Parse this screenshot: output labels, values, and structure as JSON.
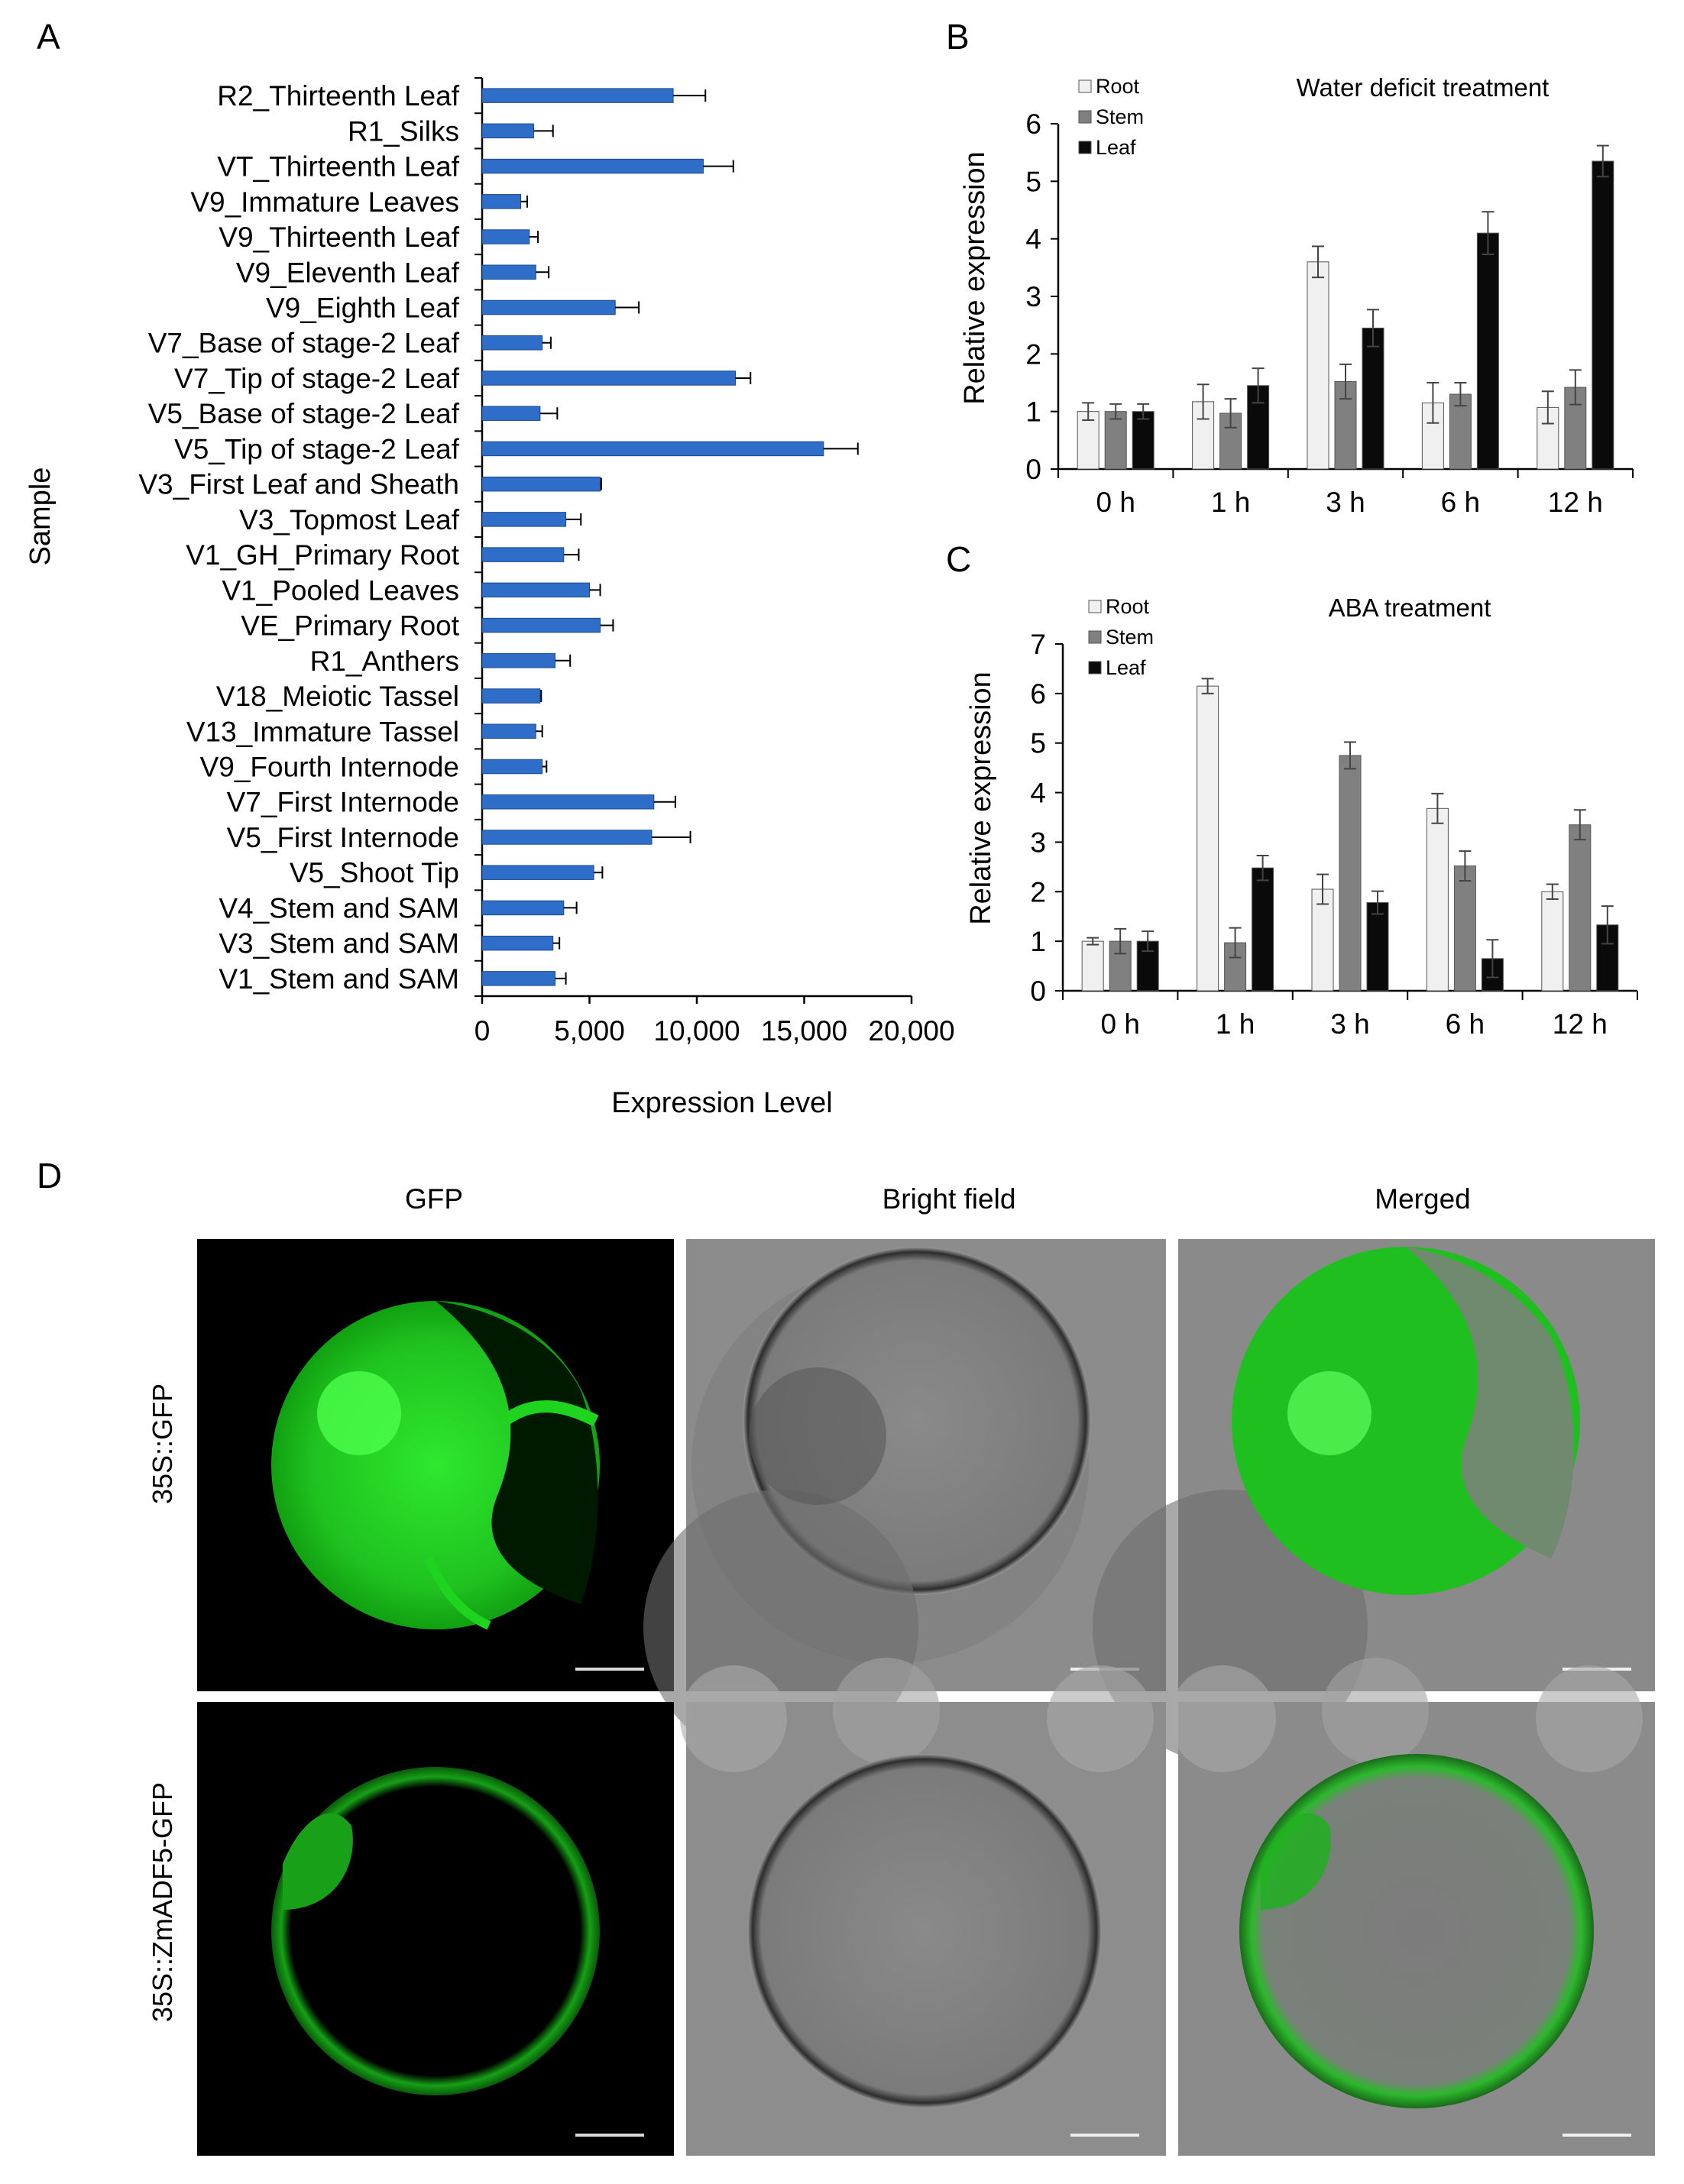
{
  "figure": {
    "panel_letters": [
      "A",
      "B",
      "C",
      "D"
    ]
  },
  "chart_data": [
    {
      "panel": "A",
      "type": "bar",
      "orientation": "horizontal",
      "title": "",
      "xlabel": "Expression Level",
      "ylabel": "Sample",
      "xlim": [
        0,
        20000
      ],
      "xticks": [
        "0",
        "5,000",
        "10,000",
        "15,000",
        "20,000"
      ],
      "bar_color": "#2f6ec8",
      "grid": false,
      "categories": [
        "R2_Thirteenth Leaf",
        "R1_Silks",
        "VT_Thirteenth Leaf",
        "V9_Immature Leaves",
        "V9_Thirteenth Leaf",
        "V9_Eleventh Leaf",
        "V9_Eighth Leaf",
        "V7_Base of stage-2 Leaf",
        "V7_Tip of stage-2 Leaf",
        "V5_Base of stage-2 Leaf",
        "V5_Tip of stage-2 Leaf",
        "V3_First Leaf and Sheath",
        "V3_Topmost Leaf",
        "V1_GH_Primary Root",
        "V1_Pooled Leaves",
        "VE_Primary Root",
        "R1_Anthers",
        "V18_Meiotic Tassel",
        "V13_Immature Tassel",
        "V9_Fourth Internode",
        "V7_First Internode",
        "V5_First Internode",
        "V5_Shoot Tip",
        "V4_Stem and SAM",
        "V3_Stem and SAM",
        "V1_Stem and SAM"
      ],
      "values": [
        8900,
        2400,
        10300,
        1800,
        2200,
        2500,
        6200,
        2800,
        11800,
        2700,
        15900,
        5500,
        3900,
        3800,
        5000,
        5500,
        3400,
        2700,
        2500,
        2800,
        8000,
        7900,
        5200,
        3800,
        3300,
        3400
      ],
      "errors": [
        1500,
        900,
        1400,
        300,
        400,
        600,
        1100,
        400,
        700,
        800,
        1600,
        50,
        700,
        700,
        500,
        600,
        700,
        50,
        300,
        200,
        1000,
        1800,
        400,
        600,
        300,
        500
      ]
    },
    {
      "panel": "B",
      "type": "bar",
      "title": "Water deficit treatment",
      "xlabel": "",
      "ylabel": "Relative expression",
      "ylim": [
        0,
        6
      ],
      "yticks": [
        "0",
        "1",
        "2",
        "3",
        "4",
        "5",
        "6"
      ],
      "categories": [
        "0 h",
        "1 h",
        "3 h",
        "6 h",
        "12 h"
      ],
      "legend_position": "top-left",
      "series": [
        {
          "name": "Root",
          "color": "#f0f0f0",
          "values": [
            1.0,
            1.17,
            3.6,
            1.15,
            1.07
          ],
          "errors": [
            0.15,
            0.3,
            0.27,
            0.35,
            0.28
          ]
        },
        {
          "name": "Stem",
          "color": "#808080",
          "values": [
            1.0,
            0.97,
            1.52,
            1.3,
            1.42
          ],
          "errors": [
            0.13,
            0.25,
            0.3,
            0.2,
            0.3
          ]
        },
        {
          "name": "Leaf",
          "color": "#0a0a0a",
          "values": [
            1.0,
            1.45,
            2.45,
            4.1,
            5.35
          ],
          "errors": [
            0.13,
            0.3,
            0.32,
            0.37,
            0.27
          ]
        }
      ]
    },
    {
      "panel": "C",
      "type": "bar",
      "title": "ABA treatment",
      "xlabel": "",
      "ylabel": "Relative expression",
      "ylim": [
        0,
        7
      ],
      "yticks": [
        "0",
        "1",
        "2",
        "3",
        "4",
        "5",
        "6",
        "7"
      ],
      "categories": [
        "0 h",
        "1 h",
        "3 h",
        "6 h",
        "12 h"
      ],
      "legend_position": "top-left",
      "series": [
        {
          "name": "Root",
          "color": "#f0f0f0",
          "values": [
            1.0,
            6.15,
            2.05,
            3.68,
            2.0
          ],
          "errors": [
            0.07,
            0.15,
            0.3,
            0.3,
            0.15
          ]
        },
        {
          "name": "Stem",
          "color": "#808080",
          "values": [
            1.0,
            0.97,
            4.75,
            2.52,
            3.35
          ],
          "errors": [
            0.25,
            0.3,
            0.27,
            0.3,
            0.3
          ]
        },
        {
          "name": "Leaf",
          "color": "#0a0a0a",
          "values": [
            1.0,
            2.48,
            1.78,
            0.65,
            1.33
          ],
          "errors": [
            0.2,
            0.25,
            0.23,
            0.38,
            0.38
          ]
        }
      ]
    }
  ],
  "microscopy": {
    "columns": [
      "GFP",
      "Bright field",
      "Merged"
    ],
    "rows": [
      "35S::GFP",
      "35S::ZmADF5-GFP"
    ]
  }
}
